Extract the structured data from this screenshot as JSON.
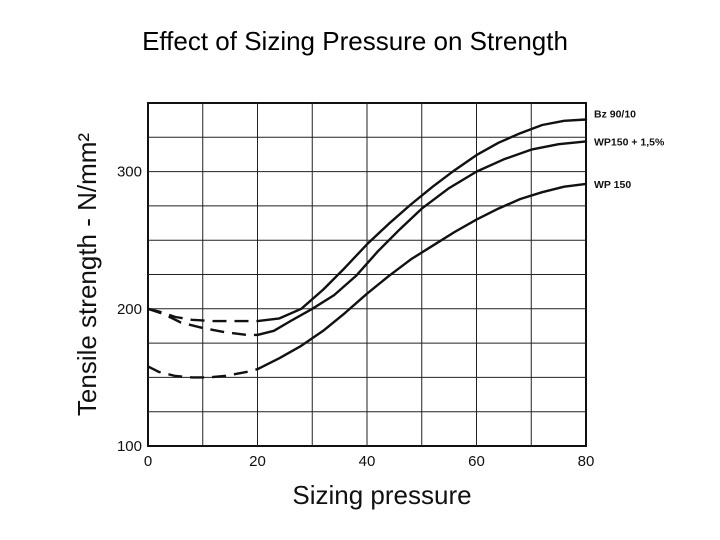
{
  "page": {
    "title": "Effect of Sizing Pressure on Strength"
  },
  "chart_data": {
    "type": "line",
    "title": "Effect of Sizing Pressure on Strength",
    "xlabel": "Sizing pressure",
    "ylabel": "Tensile strength - N/mm²",
    "xlim": [
      0,
      80
    ],
    "ylim": [
      100,
      350
    ],
    "x_ticks": [
      0,
      20,
      40,
      60,
      80
    ],
    "y_ticks": [
      100,
      200,
      300
    ],
    "grid": true,
    "series": [
      {
        "name": "Bz 90/10",
        "x": [
          0,
          2,
          5,
          8,
          12,
          16,
          20,
          24,
          28,
          32,
          36,
          40,
          44,
          48,
          52,
          56,
          60,
          64,
          68,
          72,
          76,
          80
        ],
        "y": [
          200,
          198,
          194,
          192,
          191,
          191,
          191,
          193,
          200,
          214,
          230,
          247,
          262,
          276,
          289,
          301,
          312,
          321,
          328,
          334,
          337,
          338
        ],
        "dashed_until_x": 20
      },
      {
        "name": "WP150 + 1,5%",
        "x": [
          0,
          3,
          6,
          10,
          14,
          18,
          20,
          23,
          26,
          30,
          34,
          38,
          42,
          46,
          50,
          55,
          60,
          65,
          70,
          75,
          80
        ],
        "y": [
          200,
          196,
          190,
          186,
          183,
          181,
          181,
          184,
          191,
          200,
          210,
          224,
          242,
          258,
          273,
          288,
          300,
          309,
          316,
          320,
          322
        ],
        "dashed_until_x": 20
      },
      {
        "name": "WP 150",
        "x": [
          0,
          2,
          5,
          8,
          11,
          14,
          18,
          20,
          24,
          28,
          32,
          36,
          40,
          44,
          48,
          52,
          56,
          60,
          64,
          68,
          72,
          76,
          80
        ],
        "y": [
          158,
          154,
          151,
          150,
          150,
          151,
          154,
          156,
          164,
          173,
          184,
          197,
          211,
          224,
          236,
          246,
          256,
          265,
          273,
          280,
          285,
          289,
          291
        ],
        "dashed_until_x": 20
      }
    ]
  }
}
